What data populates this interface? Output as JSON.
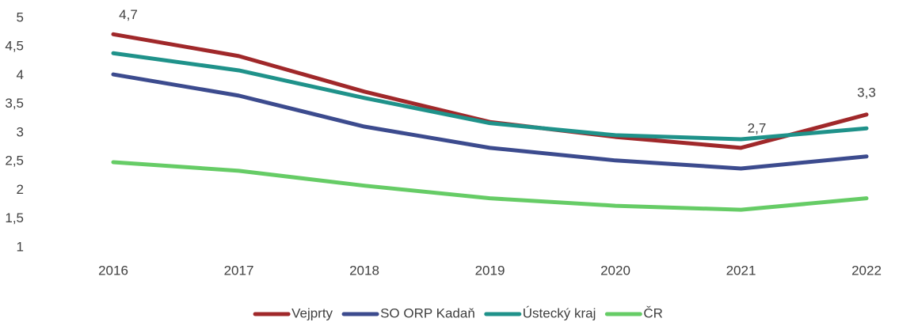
{
  "chart_data": {
    "type": "line",
    "categories": [
      "2016",
      "2017",
      "2018",
      "2019",
      "2020",
      "2021",
      "2022"
    ],
    "series": [
      {
        "name": "Vejprty",
        "color": "#a0282a",
        "values": [
          4.72,
          4.34,
          3.72,
          3.19,
          2.93,
          2.74,
          3.32
        ],
        "value_labels": [
          "4,7",
          null,
          null,
          null,
          null,
          "2,7",
          "3,3"
        ]
      },
      {
        "name": "SO ORP Kadaň",
        "color": "#3c4b8e",
        "values": [
          4.02,
          3.65,
          3.11,
          2.74,
          2.52,
          2.38,
          2.59
        ]
      },
      {
        "name": "Ústecký kraj",
        "color": "#1f928a",
        "values": [
          4.39,
          4.09,
          3.61,
          3.17,
          2.96,
          2.89,
          3.08
        ]
      },
      {
        "name": "ČR",
        "color": "#66cc66",
        "values": [
          2.49,
          2.34,
          2.08,
          1.86,
          1.73,
          1.66,
          1.86
        ]
      }
    ],
    "ylim": [
      1,
      5
    ],
    "yticks": [
      1,
      {
        "value": 1.5,
        "label": "1,5"
      },
      2,
      {
        "value": 2.5,
        "label": "2,5"
      },
      3,
      {
        "value": 3.5,
        "label": "3,5"
      },
      4,
      {
        "value": 4.5,
        "label": "4,5"
      },
      5
    ],
    "grid": false,
    "legend": "bottom"
  }
}
